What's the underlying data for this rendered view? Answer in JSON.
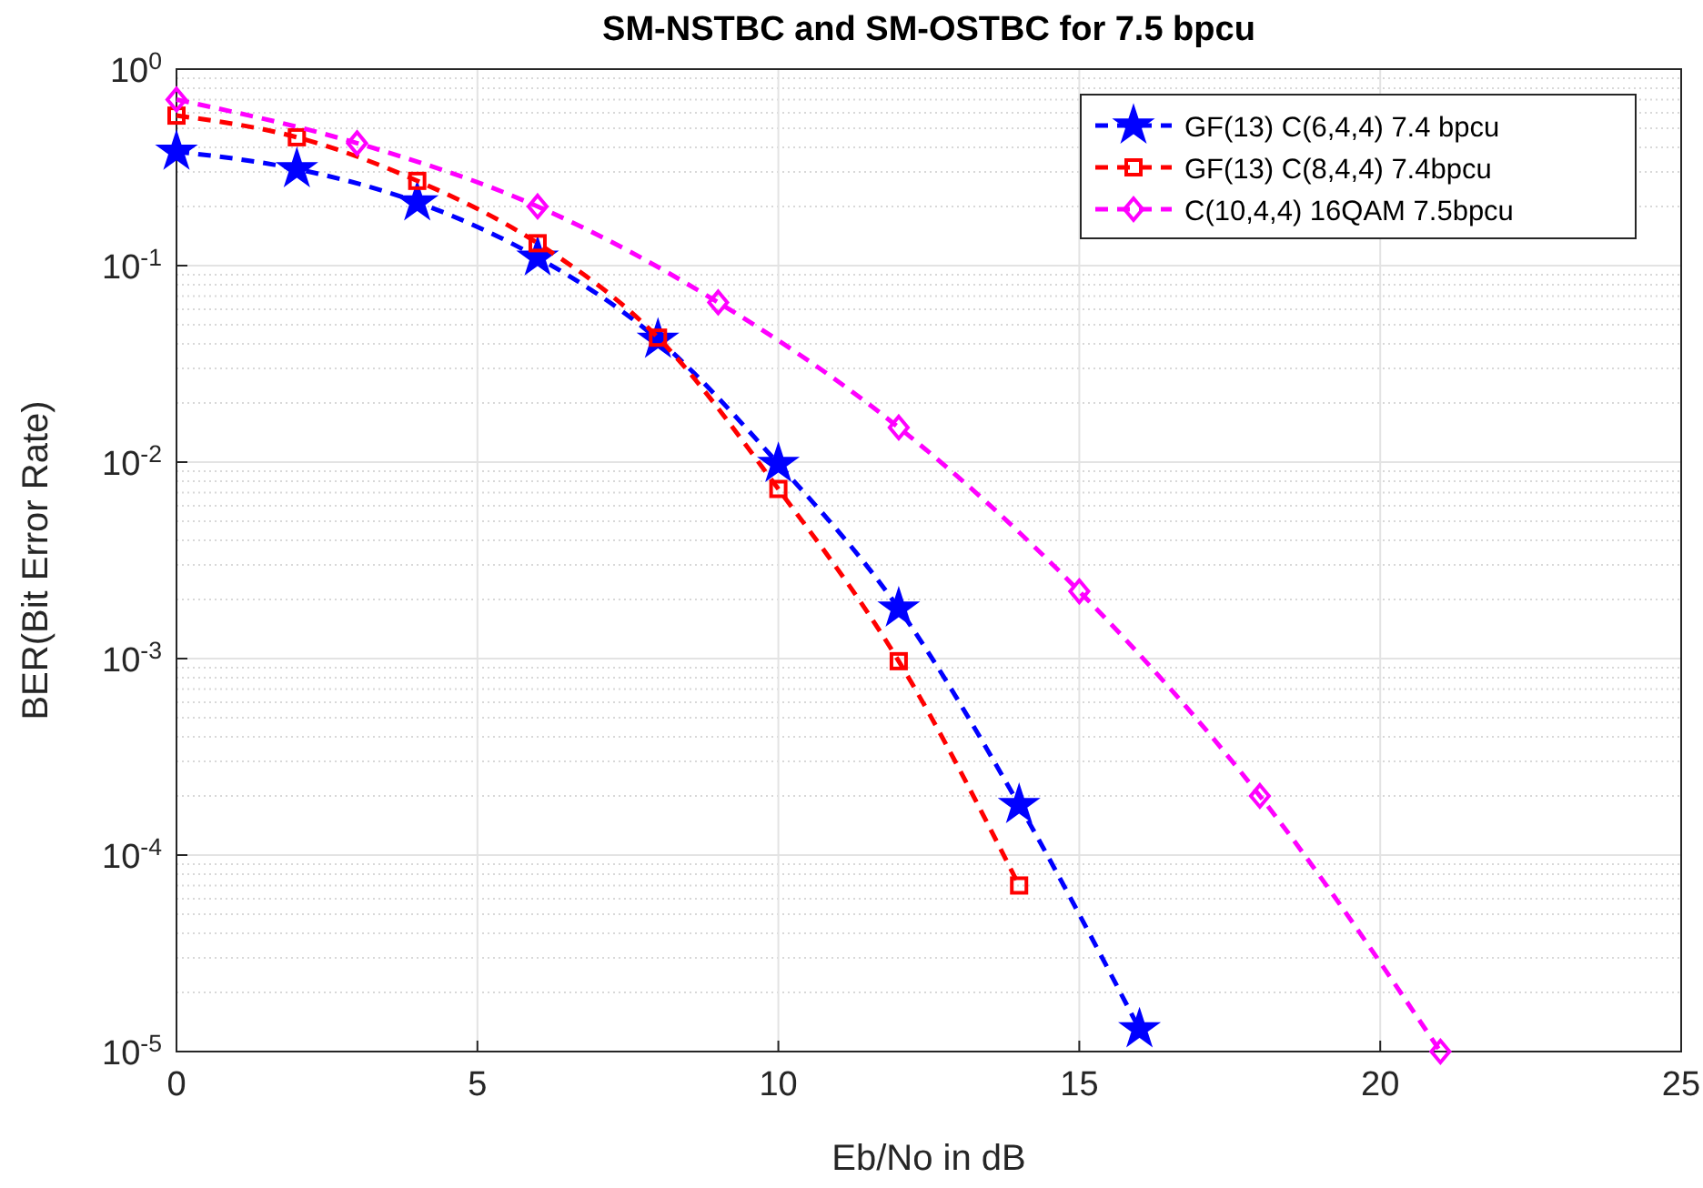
{
  "chart_data": {
    "type": "line",
    "title": "SM-NSTBC and SM-OSTBC for 7.5 bpcu",
    "xlabel": "Eb/No in dB",
    "ylabel": "BER(Bit Error Rate)",
    "log": "y",
    "grid": true,
    "legend": "top right",
    "line_style": "dashed",
    "xlim": [
      0,
      25
    ],
    "xticks": [
      0,
      5,
      10,
      15,
      20,
      25
    ],
    "ylim": [
      1e-05,
      1
    ],
    "yticks": [
      {
        "value": 1e-05,
        "label": "10$^{-5}$"
      },
      {
        "value": 0.0001,
        "label": "10$^{-4}$"
      },
      {
        "value": 0.001,
        "label": "10$^{-3}$"
      },
      {
        "value": 0.01,
        "label": "10$^{-2}$"
      },
      {
        "value": 0.1,
        "label": "10$^{-1}$"
      },
      {
        "value": 1,
        "label": "10$^{0}$"
      }
    ],
    "series": [
      {
        "name": "GF(13) C(6,4,4) 7.4 bpcu",
        "color": "#0000ff",
        "marker": "star",
        "x": [
          0,
          2,
          4,
          6,
          8,
          10,
          12,
          14,
          16
        ],
        "values": [
          0.38,
          0.31,
          0.21,
          0.11,
          0.042,
          0.0098,
          0.0018,
          0.00018,
          1.3e-05
        ]
      },
      {
        "name": "GF(13) C(8,4,4) 7.4bpcu",
        "color": "#ff0000",
        "marker": "square",
        "x": [
          0,
          2,
          4,
          6,
          8,
          10,
          12,
          14
        ],
        "values": [
          0.58,
          0.45,
          0.27,
          0.13,
          0.043,
          0.0073,
          0.00097,
          7e-05
        ]
      },
      {
        "name": "C(10,4,4) 16QAM 7.5bpcu",
        "color": "#ff00ff",
        "marker": "diamond",
        "x": [
          0,
          3,
          6,
          9,
          12,
          15,
          18,
          21
        ],
        "values": [
          0.7,
          0.42,
          0.2,
          0.065,
          0.015,
          0.0022,
          0.0002,
          1e-05
        ]
      }
    ]
  }
}
